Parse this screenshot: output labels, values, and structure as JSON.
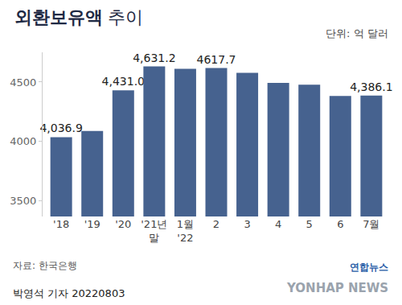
{
  "chart_data": {
    "type": "bar",
    "title": "외환보유액 추이",
    "categories": [
      "'18",
      "'19",
      "'20",
      "'21년 말",
      "1월 '22",
      "2",
      "3",
      "4",
      "5",
      "6",
      "7월"
    ],
    "values": [
      4036.9,
      4088.2,
      4431.0,
      4631.2,
      4611.6,
      4617.7,
      4578.1,
      4493.0,
      4477.1,
      4382.8,
      4386.1
    ],
    "value_labels": [
      "4,036.9",
      null,
      "4,431.0",
      "4,631.2",
      null,
      "4617.7",
      null,
      null,
      null,
      null,
      "4,386.1"
    ],
    "data_labels": true,
    "color": "#46628f",
    "ylim": [
      3370,
      4750
    ],
    "yticks": [
      3500,
      4000,
      4500
    ],
    "grid": false,
    "annotations": [
      "단위: 억 달러",
      "자료: 한국은행",
      "박영석 기자 20220803",
      "연합뉴스",
      "YONHAP NEWS"
    ]
  }
}
